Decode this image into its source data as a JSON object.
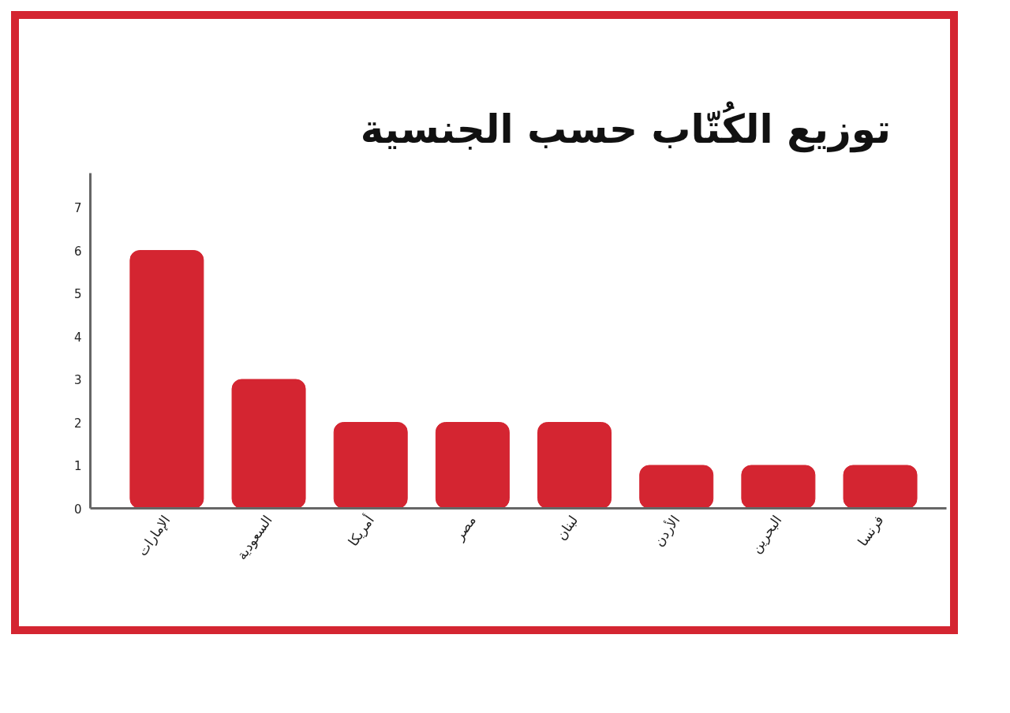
{
  "chart_data": {
    "type": "bar",
    "title": "توزيع الكُتّاب حسب الجنسية",
    "categories": [
      "الإمارات",
      "السعودية",
      "أمريكا",
      "مصر",
      "لبنان",
      "الأردن",
      "البحرين",
      "فرنسا"
    ],
    "values": [
      6,
      3,
      2,
      2,
      2,
      1,
      1,
      1
    ],
    "color": "#d42531",
    "ylim": [
      0,
      7.8
    ],
    "yticks": [
      0,
      1,
      2,
      3,
      4,
      5,
      6,
      7
    ],
    "grid": false
  }
}
